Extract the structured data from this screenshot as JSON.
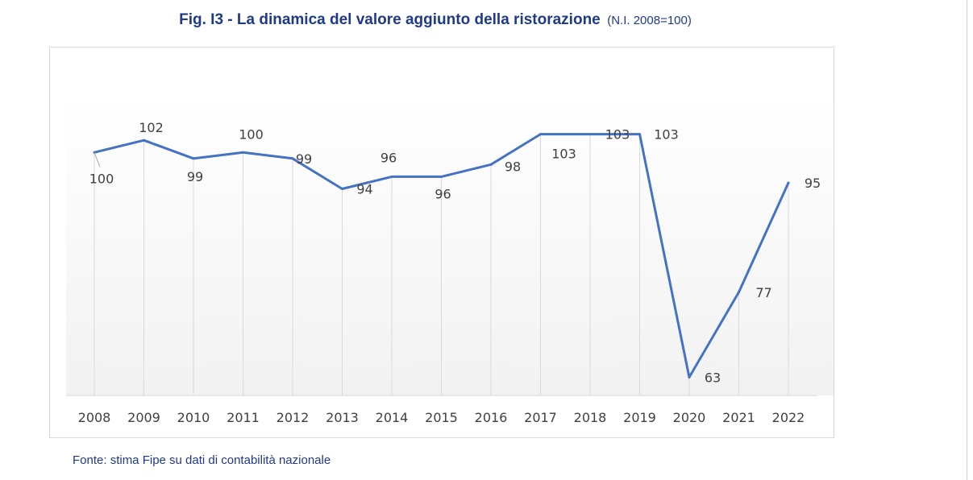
{
  "title": {
    "main": "Fig. I3 - La dinamica del valore aggiunto della ristorazione",
    "sub": "(N.I. 2008=100)"
  },
  "source": "Fonte: stima Fipe su dati di contabilità nazionale",
  "colors": {
    "title": "#1f3a8a",
    "line": "#4472c4",
    "gridline": "#d9d9d9",
    "axis_text": "#404040",
    "label_text": "#404040"
  },
  "chart_data": {
    "type": "line",
    "title": "Fig. I3 - La dinamica del valore aggiunto della ristorazione",
    "subtitle": "(N.I. 2008=100)",
    "xlabel": "",
    "ylabel": "",
    "categories": [
      "2008",
      "2009",
      "2010",
      "2011",
      "2012",
      "2013",
      "2014",
      "2015",
      "2016",
      "2017",
      "2018",
      "2019",
      "2020",
      "2021",
      "2022"
    ],
    "series": [
      {
        "values": [
          100,
          102,
          99,
          100,
          99,
          94,
          96,
          96,
          98,
          103,
          103,
          103,
          63,
          77,
          95
        ]
      }
    ],
    "data_labels": [
      "100",
      "102",
      "99",
      "100",
      "99",
      "94",
      "96",
      "96",
      "98",
      "103",
      "103",
      "103",
      "63",
      "77",
      "95"
    ],
    "ylim": [
      60,
      106
    ],
    "grid": "vertical",
    "legend": "none",
    "y_axis_visible": false
  }
}
